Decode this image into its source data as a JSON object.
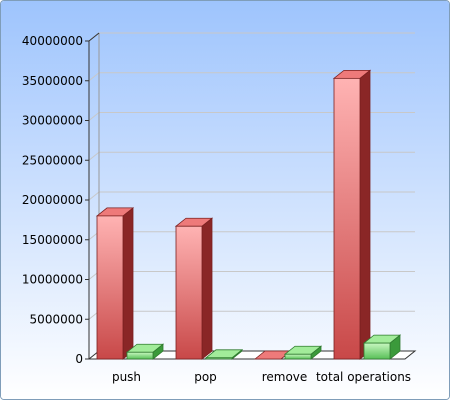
{
  "chart_data": {
    "type": "bar",
    "title": "",
    "xlabel": "",
    "ylabel": "",
    "categories": [
      "push",
      "pop",
      "remove",
      "total operations"
    ],
    "series": [
      {
        "values": [
          18000000,
          16700000,
          0,
          35300000
        ],
        "color": "#e06464"
      },
      {
        "values": [
          850000,
          150000,
          600000,
          2000000
        ],
        "color": "#7bd87b"
      }
    ],
    "ylim": [
      0,
      40000000
    ],
    "yticks": [
      0,
      5000000,
      10000000,
      15000000,
      20000000,
      25000000,
      30000000,
      35000000,
      40000000
    ],
    "grid": true,
    "legend": "none",
    "style": "3d",
    "background_gradient": [
      "#9ec4fd",
      "#ffffff"
    ]
  }
}
